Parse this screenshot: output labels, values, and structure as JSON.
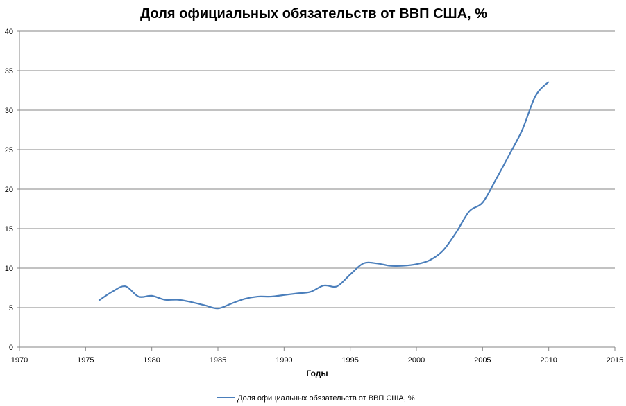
{
  "chart_data": {
    "type": "line",
    "title": "Доля официальных обязательств от ВВП США, %",
    "xlabel": "Годы",
    "ylabel": "",
    "xlim": [
      1970,
      2015
    ],
    "ylim": [
      0,
      40
    ],
    "xticks": [
      1970,
      1975,
      1980,
      1985,
      1990,
      1995,
      2000,
      2005,
      2010,
      2015
    ],
    "yticks": [
      0,
      5,
      10,
      15,
      20,
      25,
      30,
      35,
      40
    ],
    "grid": "horizontal",
    "legend_position": "bottom",
    "color": "#4a7ebb",
    "series": [
      {
        "name": "Доля официальных обязательств от ВВП США, %",
        "x": [
          1976,
          1977,
          1978,
          1979,
          1980,
          1981,
          1982,
          1983,
          1984,
          1985,
          1986,
          1987,
          1988,
          1989,
          1990,
          1991,
          1992,
          1993,
          1994,
          1995,
          1996,
          1997,
          1998,
          1999,
          2000,
          2001,
          2002,
          2003,
          2004,
          2005,
          2006,
          2007,
          2008,
          2009,
          2010
        ],
        "values": [
          5.9,
          7.0,
          7.7,
          6.4,
          6.5,
          6.0,
          6.0,
          5.7,
          5.3,
          4.9,
          5.5,
          6.1,
          6.4,
          6.4,
          6.6,
          6.8,
          7.0,
          7.8,
          7.7,
          9.2,
          10.6,
          10.6,
          10.3,
          10.3,
          10.5,
          11.0,
          12.2,
          14.5,
          17.2,
          18.3,
          21.2,
          24.3,
          27.5,
          31.8,
          33.6
        ]
      }
    ]
  }
}
